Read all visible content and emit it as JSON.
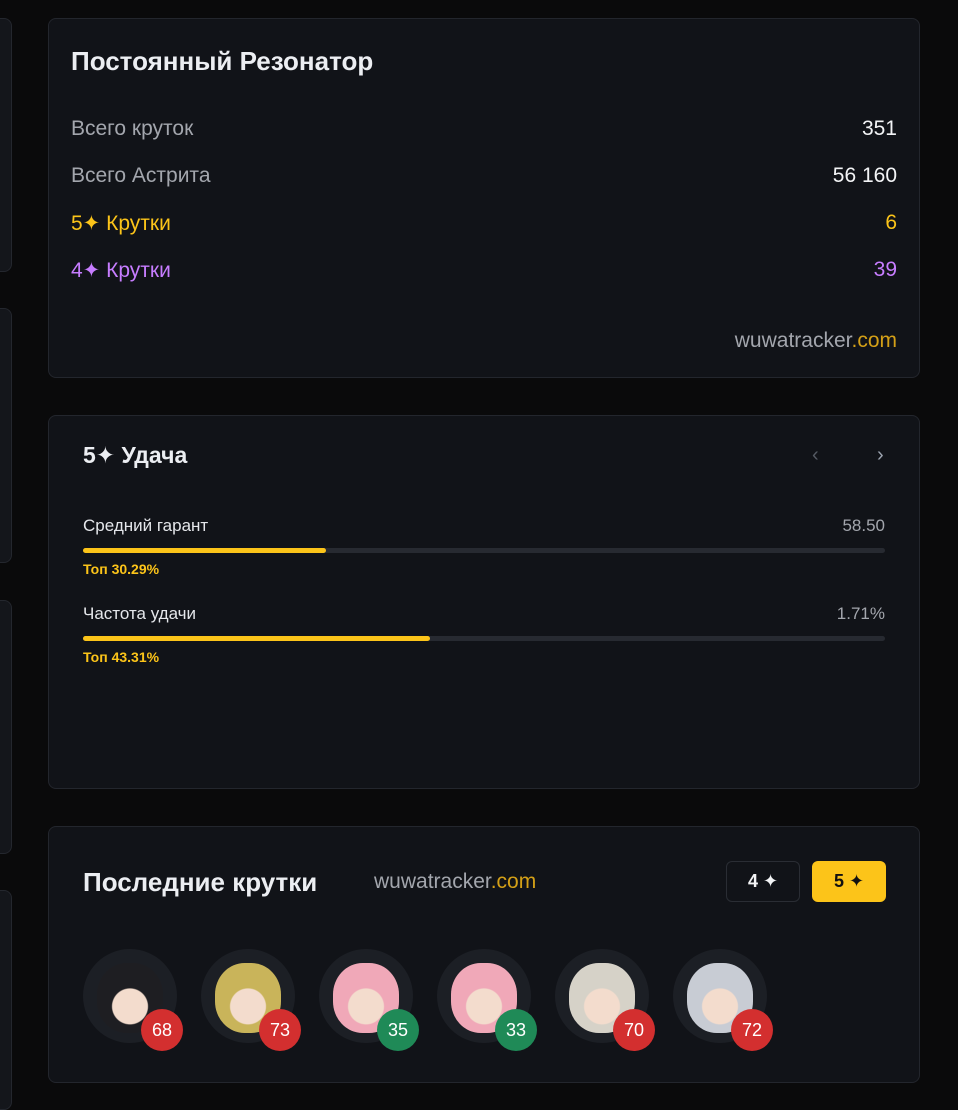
{
  "summary": {
    "title": "Постоянный Резонатор",
    "rows": [
      {
        "label": "Всего круток",
        "value": "351"
      },
      {
        "label": "Всего Астрита",
        "value": "56 160"
      },
      {
        "label": "5✦ Крутки",
        "value": "6"
      },
      {
        "label": "4✦ Крутки",
        "value": "39"
      }
    ],
    "brand_main": "wuwatracker",
    "brand_tld": ".com"
  },
  "luck": {
    "title": "5✦ Удача",
    "prev": "‹",
    "next": "›",
    "stats": [
      {
        "label": "Средний гарант",
        "value": "58.50",
        "top": "Топ 30.29%",
        "percent": 30.29
      },
      {
        "label": "Частота удачи",
        "value": "1.71%",
        "top": "Топ 43.31%",
        "percent": 43.31
      }
    ]
  },
  "recent": {
    "title": "Последние крутки",
    "brand_main": "wuwatracker",
    "brand_tld": ".com",
    "filter4": "4 ✦",
    "filter5": "5 ✦",
    "pulls": [
      {
        "pity": "68",
        "badge": "#d32f2f",
        "hair": "#1e1e22"
      },
      {
        "pity": "73",
        "badge": "#d32f2f",
        "hair": "#c9b45a"
      },
      {
        "pity": "35",
        "badge": "#1f8a57",
        "hair": "#f0a8b8"
      },
      {
        "pity": "33",
        "badge": "#1f8a57",
        "hair": "#f0a8b8"
      },
      {
        "pity": "70",
        "badge": "#d32f2f",
        "hair": "#d6d2c8"
      },
      {
        "pity": "72",
        "badge": "#d32f2f",
        "hair": "#c8ccd4"
      }
    ]
  },
  "colors": {
    "gold": "#fcc419",
    "purple": "#c77dff"
  }
}
